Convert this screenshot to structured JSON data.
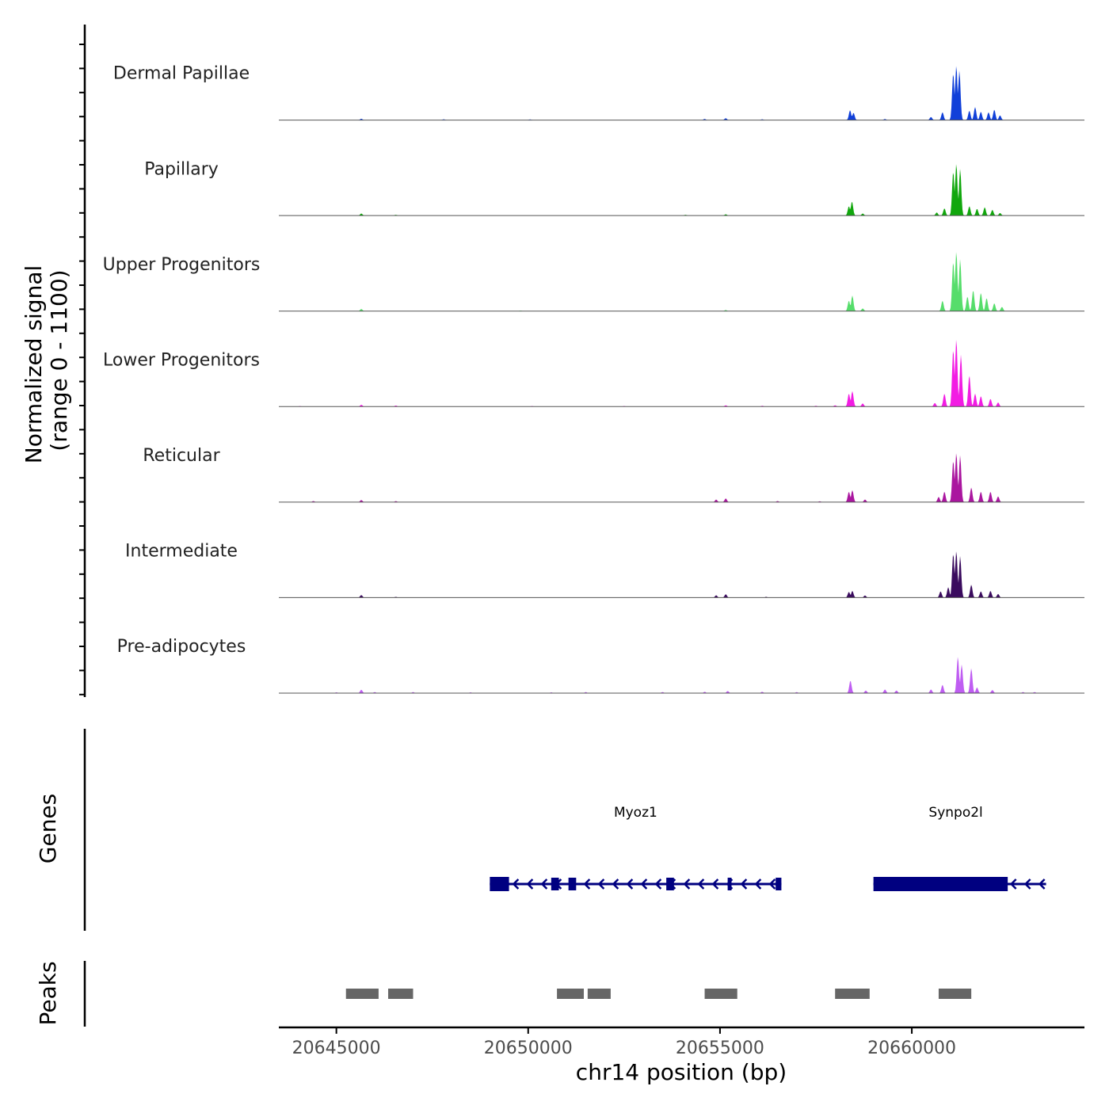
{
  "chart_data": {
    "type": "area",
    "title": "",
    "x": [
      20643500,
      20664500
    ],
    "xlim": [
      20643500,
      20664500
    ],
    "xlabel": "chr14 position (bp)",
    "xticks": [
      20645000,
      20650000,
      20655000,
      20660000
    ],
    "xtick_labels": [
      "20645000",
      "20650000",
      "20655000",
      "20660000"
    ],
    "ylabel_line1": "Normalized signal",
    "ylabel_line2": "(range 0 - 1100)",
    "ylim": [
      0,
      1100
    ],
    "tracks": [
      {
        "name": "Dermal Papillae",
        "color": "#1140d9",
        "peaks": [
          [
            20645650,
            25
          ],
          [
            20647800,
            15
          ],
          [
            20650050,
            12
          ],
          [
            20654600,
            20
          ],
          [
            20655150,
            35
          ],
          [
            20656100,
            15
          ],
          [
            20658390,
            190
          ],
          [
            20658480,
            140
          ],
          [
            20659300,
            20
          ],
          [
            20660500,
            60
          ],
          [
            20660800,
            150
          ],
          [
            20661080,
            900
          ],
          [
            20661160,
            1050
          ],
          [
            20661240,
            950
          ],
          [
            20661500,
            180
          ],
          [
            20661650,
            250
          ],
          [
            20661800,
            160
          ],
          [
            20662000,
            150
          ],
          [
            20662150,
            200
          ],
          [
            20662300,
            90
          ]
        ]
      },
      {
        "name": "Papillary",
        "color": "#11a70d",
        "peaks": [
          [
            20645650,
            40
          ],
          [
            20646550,
            15
          ],
          [
            20654100,
            15
          ],
          [
            20655150,
            25
          ],
          [
            20658360,
            180
          ],
          [
            20658440,
            270
          ],
          [
            20658720,
            40
          ],
          [
            20660650,
            60
          ],
          [
            20660850,
            140
          ],
          [
            20661080,
            850
          ],
          [
            20661160,
            1000
          ],
          [
            20661260,
            900
          ],
          [
            20661500,
            180
          ],
          [
            20661700,
            130
          ],
          [
            20661900,
            160
          ],
          [
            20662100,
            110
          ],
          [
            20662300,
            50
          ]
        ]
      },
      {
        "name": "Upper Progenitors",
        "color": "#56dd6b",
        "peaks": [
          [
            20645650,
            40
          ],
          [
            20649800,
            10
          ],
          [
            20655150,
            20
          ],
          [
            20658360,
            200
          ],
          [
            20658450,
            300
          ],
          [
            20658720,
            50
          ],
          [
            20660800,
            200
          ],
          [
            20661080,
            950
          ],
          [
            20661160,
            1150
          ],
          [
            20661260,
            1000
          ],
          [
            20661450,
            280
          ],
          [
            20661600,
            400
          ],
          [
            20661800,
            350
          ],
          [
            20661950,
            250
          ],
          [
            20662150,
            150
          ],
          [
            20662350,
            80
          ]
        ]
      },
      {
        "name": "Lower Progenitors",
        "color": "#f21ce3",
        "peaks": [
          [
            20644050,
            10
          ],
          [
            20645650,
            35
          ],
          [
            20646550,
            20
          ],
          [
            20650100,
            10
          ],
          [
            20652500,
            10
          ],
          [
            20655150,
            25
          ],
          [
            20656100,
            15
          ],
          [
            20657500,
            15
          ],
          [
            20658000,
            25
          ],
          [
            20658360,
            250
          ],
          [
            20658450,
            300
          ],
          [
            20658720,
            60
          ],
          [
            20660600,
            70
          ],
          [
            20660850,
            250
          ],
          [
            20661080,
            1100
          ],
          [
            20661160,
            1300
          ],
          [
            20661280,
            1000
          ],
          [
            20661500,
            600
          ],
          [
            20661650,
            250
          ],
          [
            20661800,
            200
          ],
          [
            20662050,
            150
          ],
          [
            20662250,
            80
          ]
        ]
      },
      {
        "name": "Reticular",
        "color": "#aa169f",
        "peaks": [
          [
            20644400,
            20
          ],
          [
            20645650,
            40
          ],
          [
            20646550,
            20
          ],
          [
            20654900,
            50
          ],
          [
            20655150,
            70
          ],
          [
            20656500,
            20
          ],
          [
            20657600,
            15
          ],
          [
            20658360,
            200
          ],
          [
            20658450,
            230
          ],
          [
            20658780,
            50
          ],
          [
            20660700,
            100
          ],
          [
            20660850,
            200
          ],
          [
            20661080,
            800
          ],
          [
            20661160,
            950
          ],
          [
            20661260,
            900
          ],
          [
            20661550,
            280
          ],
          [
            20661800,
            200
          ],
          [
            20662050,
            200
          ],
          [
            20662250,
            110
          ]
        ]
      },
      {
        "name": "Intermediate",
        "color": "#3a0b5e",
        "peaks": [
          [
            20645650,
            50
          ],
          [
            20646550,
            15
          ],
          [
            20654900,
            45
          ],
          [
            20655150,
            65
          ],
          [
            20656200,
            15
          ],
          [
            20658360,
            110
          ],
          [
            20658450,
            130
          ],
          [
            20658780,
            40
          ],
          [
            20660750,
            120
          ],
          [
            20660950,
            200
          ],
          [
            20661080,
            850
          ],
          [
            20661160,
            900
          ],
          [
            20661260,
            800
          ],
          [
            20661550,
            250
          ],
          [
            20661800,
            120
          ],
          [
            20662050,
            130
          ],
          [
            20662250,
            70
          ]
        ]
      },
      {
        "name": "Pre-adipocytes",
        "color": "#bf5df2",
        "peaks": [
          [
            20645000,
            15
          ],
          [
            20645650,
            65
          ],
          [
            20646000,
            20
          ],
          [
            20647000,
            20
          ],
          [
            20648500,
            15
          ],
          [
            20650600,
            15
          ],
          [
            20651500,
            20
          ],
          [
            20653500,
            20
          ],
          [
            20654600,
            25
          ],
          [
            20655200,
            40
          ],
          [
            20656100,
            25
          ],
          [
            20657000,
            20
          ],
          [
            20658400,
            240
          ],
          [
            20658800,
            50
          ],
          [
            20659300,
            70
          ],
          [
            20659600,
            50
          ],
          [
            20660500,
            70
          ],
          [
            20660800,
            160
          ],
          [
            20661200,
            700
          ],
          [
            20661300,
            550
          ],
          [
            20661550,
            480
          ],
          [
            20661700,
            110
          ],
          [
            20662100,
            60
          ],
          [
            20662900,
            20
          ],
          [
            20663200,
            20
          ]
        ]
      }
    ],
    "genes_label": "Genes",
    "genes": [
      {
        "name": "Myoz1",
        "color": "#000080",
        "start": 20649000,
        "end": 20656600,
        "strand": "-",
        "exons": [
          [
            20649000,
            20649500
          ],
          [
            20650600,
            20650800
          ],
          [
            20651050,
            20651250
          ],
          [
            20653600,
            20653800
          ],
          [
            20655200,
            20655300
          ],
          [
            20656450,
            20656600
          ]
        ],
        "utr": [
          [
            20649000,
            20649500
          ]
        ]
      },
      {
        "name": "Synpo2l",
        "color": "#000080",
        "start": 20659000,
        "end": 20663500,
        "strand": "-",
        "exons": [
          [
            20659000,
            20662500
          ]
        ],
        "utr": []
      }
    ],
    "peaks_label": "Peaks",
    "peak_regions": [
      [
        20645250,
        20646100
      ],
      [
        20646350,
        20647000
      ],
      [
        20650750,
        20651450
      ],
      [
        20651550,
        20652150
      ],
      [
        20654600,
        20655450
      ],
      [
        20658000,
        20658900
      ],
      [
        20660700,
        20661550
      ]
    ],
    "peak_color": "#666666"
  }
}
